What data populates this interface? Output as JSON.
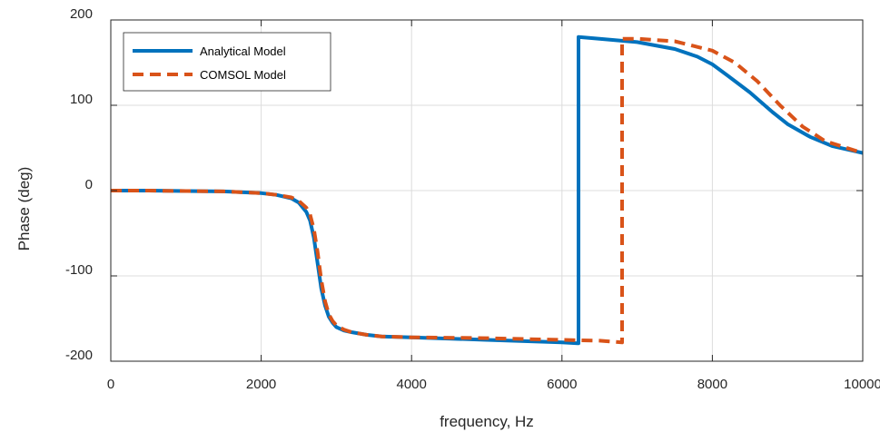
{
  "chart_data": {
    "type": "line",
    "title": "",
    "xlabel": "frequency, Hz",
    "ylabel": "Phase (deg)",
    "xlim": [
      0,
      10000
    ],
    "ylim": [
      -200,
      200
    ],
    "xticks": [
      0,
      2000,
      4000,
      6000,
      8000,
      10000
    ],
    "yticks": [
      -200,
      -100,
      0,
      100,
      200
    ],
    "grid": true,
    "legend_position": "top-left",
    "series": [
      {
        "name": "Analytical Model",
        "color": "#0072BD",
        "style": "solid",
        "x": [
          0,
          500,
          1000,
          1500,
          2000,
          2200,
          2400,
          2500,
          2600,
          2650,
          2700,
          2750,
          2800,
          2850,
          2900,
          2950,
          3000,
          3100,
          3200,
          3400,
          3600,
          4000,
          5000,
          6000,
          6220,
          6220,
          6500,
          7000,
          7500,
          7800,
          8000,
          8200,
          8500,
          8800,
          9000,
          9300,
          9600,
          10000
        ],
        "y": [
          0,
          0,
          -0.5,
          -1,
          -3,
          -5,
          -9,
          -14,
          -25,
          -35,
          -55,
          -85,
          -115,
          -135,
          -148,
          -155,
          -160,
          -164,
          -166,
          -169,
          -171,
          -172,
          -175,
          -178,
          -179,
          180,
          178,
          174,
          166,
          157,
          148,
          135,
          115,
          92,
          78,
          63,
          52,
          44
        ]
      },
      {
        "name": "COMSOL Model",
        "color": "#D95319",
        "style": "dashed",
        "x": [
          0,
          500,
          1000,
          1500,
          2000,
          2200,
          2400,
          2500,
          2600,
          2650,
          2700,
          2750,
          2800,
          2850,
          2900,
          2950,
          3000,
          3100,
          3200,
          3400,
          3600,
          4000,
          5000,
          6000,
          6500,
          6800,
          6800,
          7000,
          7500,
          8000,
          8300,
          8600,
          8900,
          9200,
          9500,
          10000
        ],
        "y": [
          0,
          0,
          -0.5,
          -1,
          -3,
          -5,
          -8,
          -12,
          -20,
          -28,
          -45,
          -72,
          -105,
          -130,
          -145,
          -153,
          -158,
          -163,
          -166,
          -169,
          -171,
          -172,
          -173,
          -175,
          -176,
          -178,
          178,
          178,
          175,
          164,
          150,
          128,
          100,
          75,
          58,
          44
        ]
      }
    ]
  }
}
